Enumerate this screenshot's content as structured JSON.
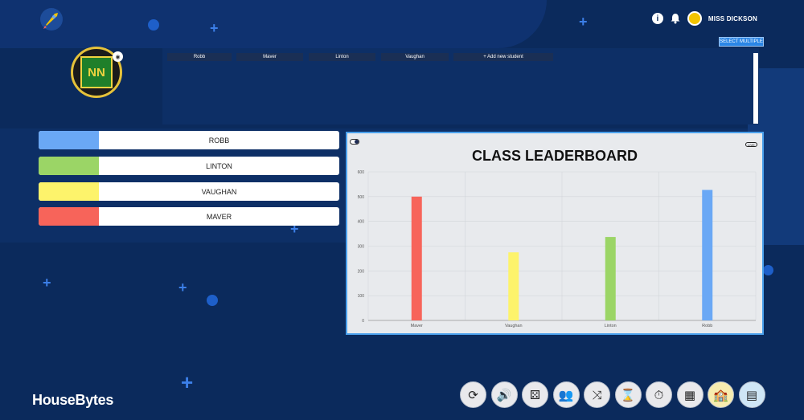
{
  "header": {
    "user_name": "MISS DICKSON",
    "select_multiple_label": "SELECT MULTIPLE",
    "info_icon": "info-icon",
    "notification_icon": "bell-icon"
  },
  "students": {
    "tabs": [
      {
        "label": "Robb"
      },
      {
        "label": "Maver"
      },
      {
        "label": "Linton"
      },
      {
        "label": "Vaughan"
      },
      {
        "label": "+ Add new student"
      }
    ]
  },
  "houses": [
    {
      "name": "ROBB",
      "color": "#6aa8f5"
    },
    {
      "name": "LINTON",
      "color": "#9bd566"
    },
    {
      "name": "VAUGHAN",
      "color": "#fdf36b"
    },
    {
      "name": "MAVER",
      "color": "#f7645a"
    }
  ],
  "board": {
    "title": "CLASS LEADERBOARD",
    "live_label": "LIVE"
  },
  "chart_data": {
    "type": "bar",
    "title": "CLASS LEADERBOARD",
    "categories": [
      "Maver",
      "Vaughan",
      "Linton",
      "Robb"
    ],
    "values": [
      500,
      275,
      337,
      527
    ],
    "colors": [
      "#f7645a",
      "#fdf36b",
      "#9bd566",
      "#6aa8f5"
    ],
    "ylim": [
      0,
      600
    ],
    "yticks": [
      0,
      100,
      200,
      300,
      400,
      500,
      600
    ],
    "grid": true
  },
  "footer": {
    "brand": "HouseBytes",
    "tools": [
      {
        "icon": "refresh-icon",
        "glyph": "⟳"
      },
      {
        "icon": "volume-icon",
        "glyph": "🔊"
      },
      {
        "icon": "dice-icon",
        "glyph": "⚄"
      },
      {
        "icon": "group-icon",
        "glyph": "👥"
      },
      {
        "icon": "shuffle-icon",
        "glyph": "⤨"
      },
      {
        "icon": "hourglass-icon",
        "glyph": "⌛"
      },
      {
        "icon": "stopwatch-icon",
        "glyph": "⏱"
      },
      {
        "icon": "classroom-icon",
        "glyph": "▦"
      },
      {
        "icon": "school-icon",
        "glyph": "🏫"
      },
      {
        "icon": "seating-chart-icon",
        "glyph": "▤"
      }
    ]
  }
}
